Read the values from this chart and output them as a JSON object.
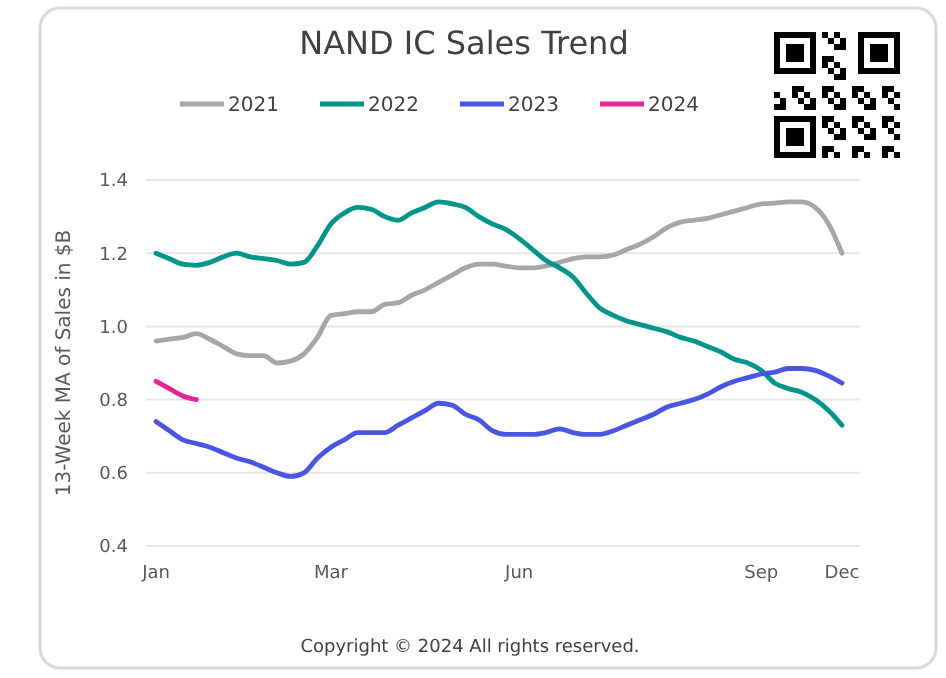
{
  "chart_data": {
    "type": "line",
    "title": "NAND IC Sales Trend",
    "ylabel": "13-Week MA of Sales in $B",
    "annotations": [
      "Copyright © 2024 All rights reserved."
    ],
    "categories": [
      "Jan",
      null,
      null,
      null,
      null,
      null,
      null,
      null,
      null,
      null,
      null,
      null,
      null,
      "Mar",
      null,
      null,
      null,
      null,
      null,
      null,
      null,
      null,
      null,
      null,
      null,
      null,
      null,
      "Jun",
      null,
      null,
      null,
      null,
      null,
      null,
      null,
      null,
      null,
      null,
      null,
      null,
      null,
      null,
      null,
      null,
      null,
      "Sep",
      null,
      null,
      null,
      null,
      null,
      "Dec"
    ],
    "ylim": [
      0.4,
      1.4
    ],
    "yticks": [
      {
        "value": 0.4,
        "label": "0.4"
      },
      {
        "value": 0.6,
        "label": "0.6"
      },
      {
        "value": 0.8,
        "label": "0.8"
      },
      {
        "value": 1.0,
        "label": "1.0"
      },
      {
        "value": 1.2,
        "label": "1.2"
      },
      {
        "value": 1.4,
        "label": "1.4"
      }
    ],
    "grid": "y",
    "legend": "top",
    "marker": "none",
    "line_style": "solid",
    "series": [
      {
        "name": "2021",
        "color": "#a6a6a6",
        "values": [
          0.96,
          0.965,
          0.97,
          0.98,
          0.965,
          0.945,
          0.925,
          0.92,
          0.92,
          0.9,
          0.905,
          0.925,
          0.97,
          1.03,
          1.035,
          1.04,
          1.04,
          1.06,
          1.065,
          1.085,
          1.1,
          1.12,
          1.14,
          1.16,
          1.17,
          1.17,
          1.165,
          1.16,
          1.16,
          1.165,
          1.175,
          1.185,
          1.19,
          1.19,
          1.195,
          1.21,
          1.225,
          1.245,
          1.27,
          1.285,
          1.29,
          1.295,
          1.305,
          1.315,
          1.325,
          1.335,
          1.337,
          1.34,
          1.34,
          1.325,
          1.28,
          1.2
        ]
      },
      {
        "name": "2022",
        "color": "#00958a",
        "values": [
          1.2,
          1.185,
          1.17,
          1.167,
          1.175,
          1.19,
          1.2,
          1.19,
          1.185,
          1.18,
          1.17,
          1.175,
          1.22,
          1.28,
          1.31,
          1.325,
          1.32,
          1.3,
          1.29,
          1.31,
          1.325,
          1.34,
          1.335,
          1.325,
          1.3,
          1.28,
          1.265,
          1.24,
          1.21,
          1.18,
          1.16,
          1.135,
          1.09,
          1.05,
          1.03,
          1.015,
          1.005,
          0.995,
          0.985,
          0.97,
          0.96,
          0.945,
          0.93,
          0.91,
          0.9,
          0.88,
          0.845,
          0.83,
          0.82,
          0.8,
          0.77,
          0.73
        ]
      },
      {
        "name": "2023",
        "color": "#4a56e2",
        "values": [
          0.74,
          0.715,
          0.69,
          0.68,
          0.67,
          0.655,
          0.64,
          0.63,
          0.615,
          0.6,
          0.59,
          0.6,
          0.64,
          0.67,
          0.69,
          0.71,
          0.71,
          0.71,
          0.73,
          0.75,
          0.77,
          0.79,
          0.785,
          0.76,
          0.745,
          0.715,
          0.705,
          0.705,
          0.705,
          0.71,
          0.72,
          0.71,
          0.705,
          0.705,
          0.715,
          0.73,
          0.745,
          0.76,
          0.78,
          0.79,
          0.8,
          0.815,
          0.835,
          0.85,
          0.86,
          0.87,
          0.875,
          0.885,
          0.885,
          0.88,
          0.865,
          0.845
        ]
      },
      {
        "name": "2024",
        "color": "#e6249a",
        "values": [
          0.85,
          0.83,
          0.81,
          0.8,
          null,
          null,
          null,
          null,
          null,
          null,
          null,
          null,
          null,
          null,
          null,
          null,
          null,
          null,
          null,
          null,
          null,
          null,
          null,
          null,
          null,
          null,
          null,
          null,
          null,
          null,
          null,
          null,
          null,
          null,
          null,
          null,
          null,
          null,
          null,
          null,
          null,
          null,
          null,
          null,
          null,
          null,
          null,
          null,
          null,
          null,
          null,
          null
        ]
      }
    ]
  }
}
